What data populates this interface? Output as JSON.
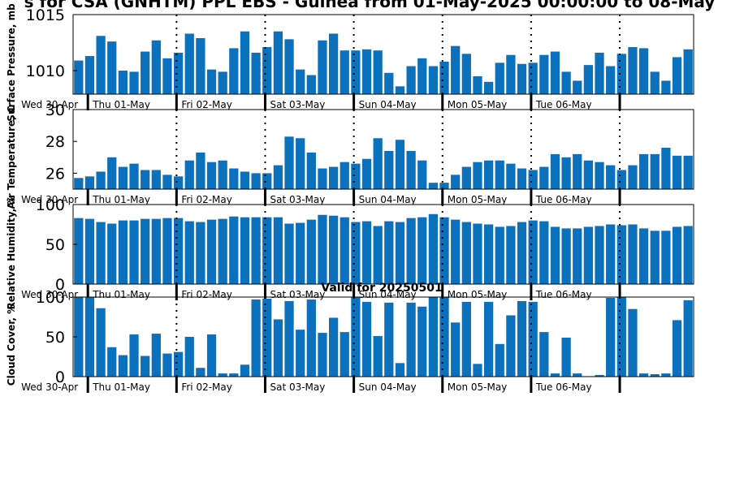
{
  "title": "s for CSA (GNHTM) PPL EBS  - Guinea from 01-May-2025 00:00:00 to 08-May",
  "subtitle": "Valid for 20250501",
  "colors": {
    "bar": "#0b71bd"
  },
  "chart_data": [
    {
      "type": "bar",
      "ylabel": "Surface Pressure, mb",
      "ylim": [
        1007.9,
        1015.0
      ],
      "yticks": [
        1010,
        1015
      ],
      "x_ticks": [
        "Wed 30-Apr",
        "Thu 01-May",
        "Fri 02-May",
        "Sat 03-May",
        "Sun 04-May",
        "Mon 05-May",
        "Tue 06-May"
      ],
      "values": [
        1010.9,
        1011.3,
        1013.1,
        1012.6,
        1010.0,
        1009.9,
        1011.7,
        1012.7,
        1011.1,
        1011.6,
        1013.3,
        1012.9,
        1010.1,
        1009.9,
        1012.0,
        1013.5,
        1011.6,
        1012.1,
        1013.5,
        1012.8,
        1010.1,
        1009.6,
        1012.7,
        1013.3,
        1011.8,
        1011.8,
        1011.9,
        1011.8,
        1009.8,
        1008.6,
        1010.4,
        1011.1,
        1010.4,
        1010.8,
        1012.2,
        1011.5,
        1009.5,
        1009.0,
        1010.7,
        1011.4,
        1010.6,
        1010.7,
        1011.4,
        1011.7,
        1009.9,
        1009.1,
        1010.5,
        1011.6,
        1010.4,
        1011.5,
        1012.1,
        1012.0,
        1009.9,
        1009.1,
        1011.2,
        1011.9
      ]
    },
    {
      "type": "bar",
      "ylabel": "Air Temperature, C",
      "ylim": [
        25.0,
        30.0
      ],
      "yticks": [
        26,
        28,
        30
      ],
      "x_ticks": [
        "Wed 30-Apr",
        "Thu 01-May",
        "Fri 02-May",
        "Sat 03-May",
        "Sun 04-May",
        "Mon 05-May",
        "Tue 06-May"
      ],
      "values": [
        25.7,
        25.8,
        26.1,
        27.0,
        26.4,
        26.6,
        26.2,
        26.2,
        25.9,
        25.8,
        26.8,
        27.3,
        26.7,
        26.8,
        26.3,
        26.1,
        26.0,
        26.0,
        26.5,
        28.3,
        28.2,
        27.3,
        26.3,
        26.4,
        26.7,
        26.6,
        26.9,
        28.2,
        27.4,
        28.1,
        27.4,
        26.8,
        25.4,
        25.4,
        25.9,
        26.4,
        26.7,
        26.8,
        26.8,
        26.6,
        26.3,
        26.2,
        26.4,
        27.2,
        27.0,
        27.2,
        26.8,
        26.7,
        26.5,
        26.2,
        26.5,
        27.2,
        27.2,
        27.6,
        27.1,
        27.1
      ]
    },
    {
      "type": "bar",
      "ylabel": "Relative Humidity, %",
      "ylim": [
        0,
        100
      ],
      "yticks": [
        0,
        50,
        100
      ],
      "x_ticks": [
        "Wed 30-Apr",
        "Thu 01-May",
        "Fri 02-May",
        "Sat 03-May",
        "Sun 04-May",
        "Mon 05-May",
        "Tue 06-May"
      ],
      "values": [
        83,
        82,
        78,
        76,
        80,
        80,
        82,
        82,
        83,
        83,
        79,
        78,
        81,
        82,
        85,
        84,
        84,
        84,
        84,
        76,
        77,
        81,
        87,
        86,
        84,
        78,
        79,
        73,
        79,
        78,
        83,
        84,
        88,
        84,
        81,
        78,
        76,
        75,
        72,
        73,
        78,
        80,
        79,
        72,
        70,
        70,
        72,
        73,
        75,
        74,
        75,
        70,
        67,
        67,
        72,
        73
      ]
    },
    {
      "type": "bar",
      "ylabel": "Cloud Cover, %",
      "ylim": [
        0,
        100
      ],
      "yticks": [
        0,
        50,
        100
      ],
      "x_ticks": [
        "Wed 30-Apr",
        "Thu 01-May",
        "Fri 02-May",
        "Sat 03-May",
        "Sun 04-May",
        "Mon 05-May",
        "Tue 06-May"
      ],
      "values": [
        100,
        100,
        86,
        37,
        27,
        53,
        26,
        54,
        29,
        31,
        50,
        11,
        53,
        4,
        4,
        15,
        97,
        98,
        72,
        95,
        59,
        97,
        55,
        74,
        56,
        100,
        94,
        51,
        93,
        17,
        93,
        88,
        100,
        100,
        68,
        94,
        16,
        94,
        41,
        77,
        95,
        94,
        56,
        4,
        49,
        4,
        0,
        2,
        99,
        100,
        85,
        4,
        3,
        4,
        71,
        96
      ]
    }
  ]
}
